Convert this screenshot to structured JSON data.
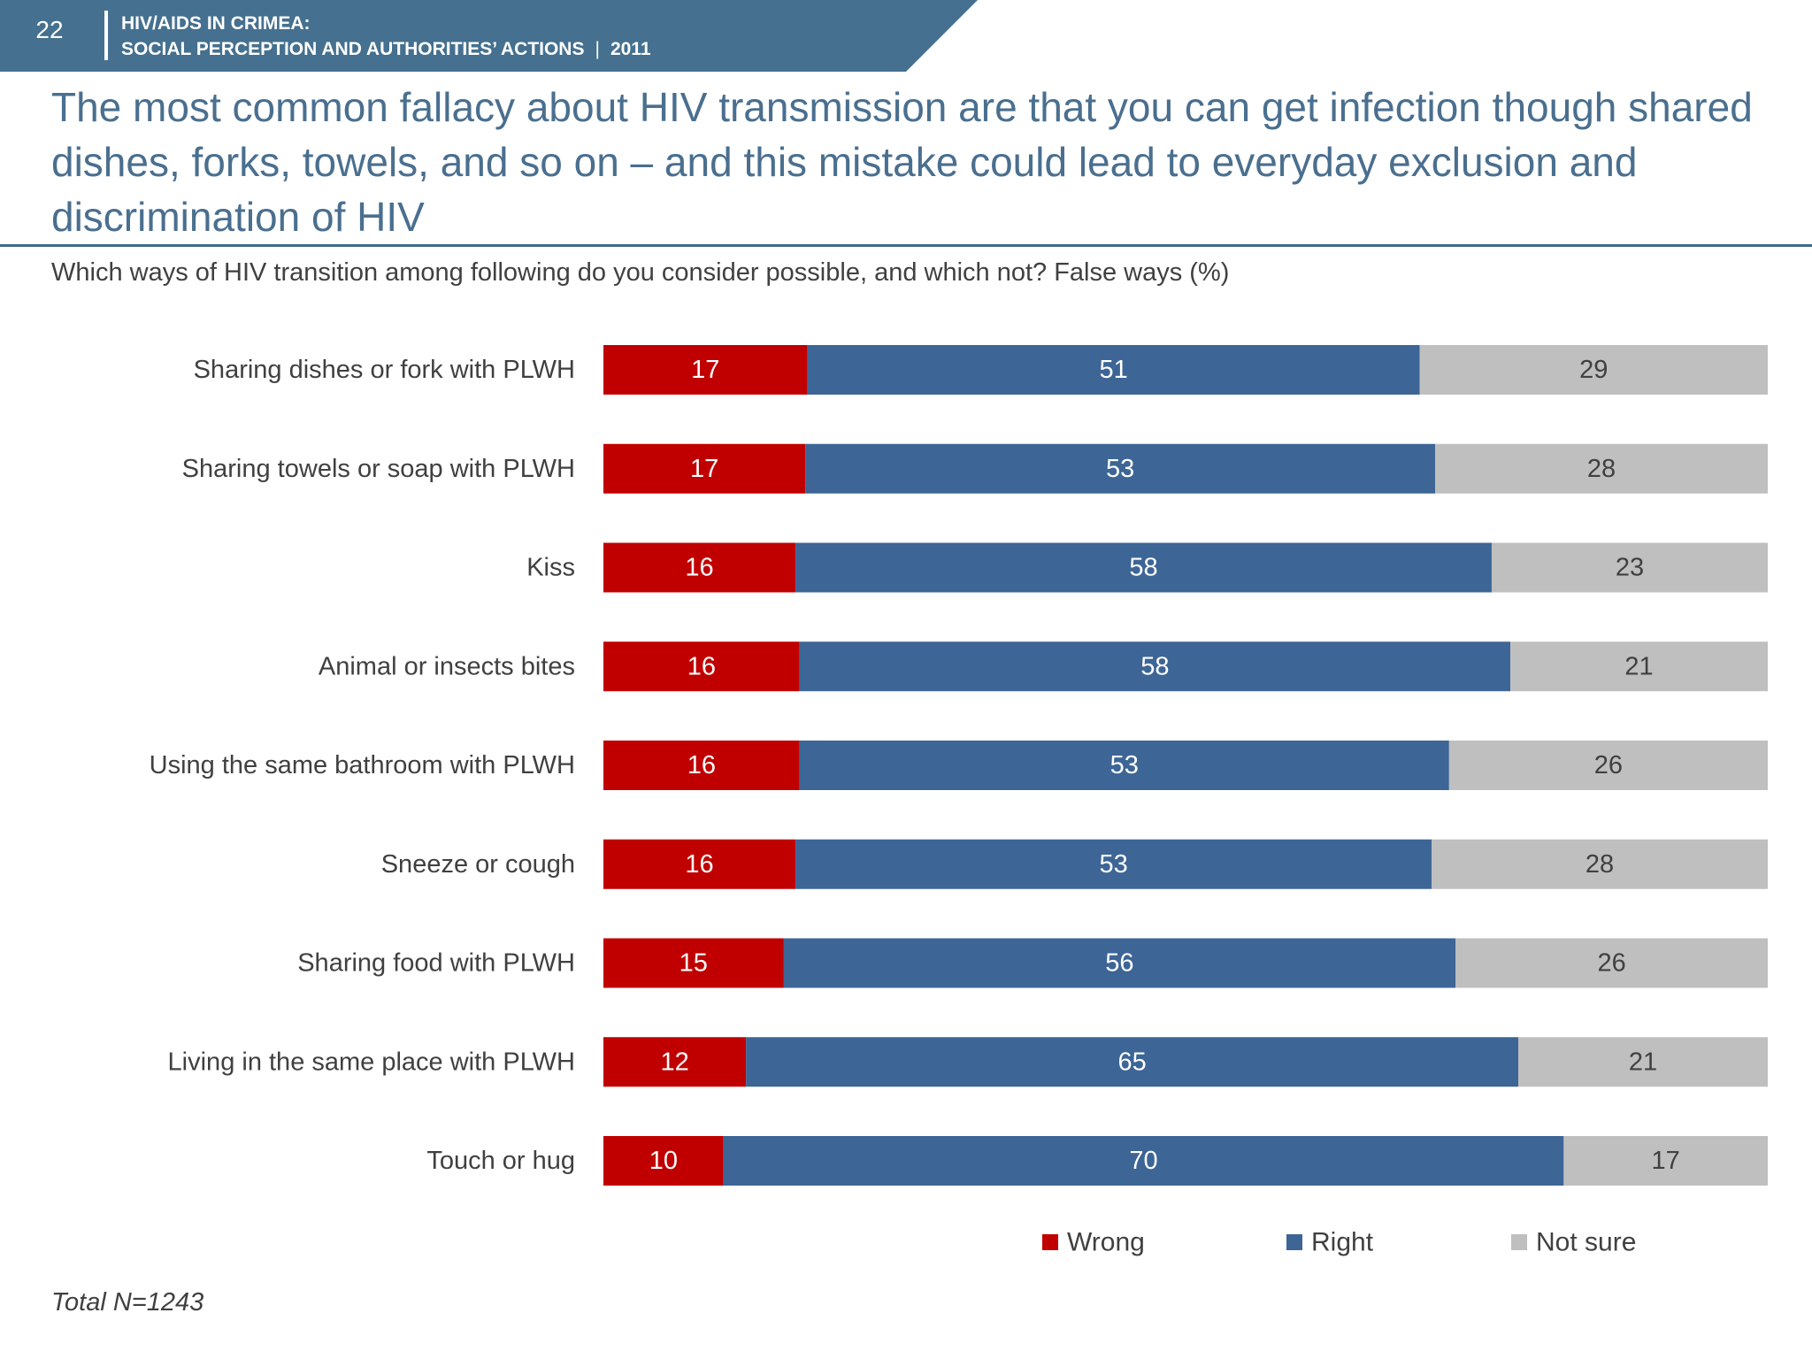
{
  "header": {
    "page_number": "22",
    "line1": "HIV/AIDS IN CRIMEA:",
    "line2": "SOCIAL PERCEPTION AND AUTHORITIES’ ACTIONS",
    "separator": "|",
    "year": "2011",
    "banner_color": "#45708f"
  },
  "title": "The most common fallacy about HIV transmission are that you can get infection though shared dishes, forks, towels, and so on – and this mistake could lead to everyday exclusion and discrimination of HIV",
  "subtitle": "Which ways of HIV transition among following do you consider possible, and which not? False ways (%)",
  "footnote": "Total N=1243",
  "chart_data": {
    "type": "bar",
    "orientation": "horizontal",
    "stacked": true,
    "categories": [
      "Sharing dishes or fork with PLWH",
      "Sharing towels or soap with PLWH",
      "Kiss",
      "Animal or insects bites",
      "Using the same bathroom with PLWH",
      "Sneeze or cough",
      "Sharing food with PLWH",
      "Living in the same place with PLWH",
      "Touch or hug"
    ],
    "series": [
      {
        "name": "Wrong",
        "color": "#c00000",
        "values": [
          17,
          17,
          16,
          16,
          16,
          16,
          15,
          12,
          10
        ]
      },
      {
        "name": "Right",
        "color": "#3d6596",
        "values": [
          51,
          53,
          58,
          58,
          53,
          53,
          56,
          65,
          70
        ]
      },
      {
        "name": "Not sure",
        "color": "#bfbfbf",
        "values": [
          29,
          28,
          23,
          21,
          26,
          28,
          26,
          21,
          17
        ]
      }
    ],
    "label_colors": [
      "#ffffff",
      "#ffffff",
      "#404040"
    ],
    "data_labels": true,
    "grid": false,
    "axis_visible": false,
    "legend_position": "bottom"
  }
}
